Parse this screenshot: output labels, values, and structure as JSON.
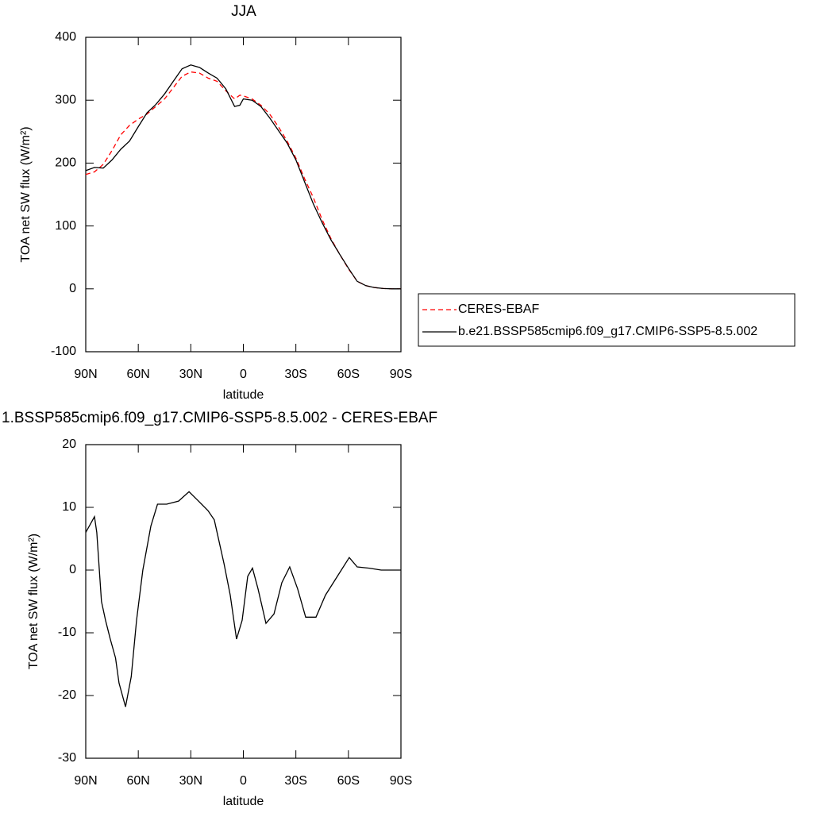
{
  "chart_data": [
    {
      "type": "line",
      "title": "JJA",
      "xlabel": "latitude",
      "ylabel": "TOA net SW flux (W/m²)",
      "x": [
        90,
        85,
        80,
        75,
        70,
        65,
        60,
        55,
        50,
        45,
        40,
        35,
        30,
        25,
        20,
        15,
        10,
        5,
        2,
        0,
        -5,
        -10,
        -15,
        -20,
        -25,
        -30,
        -35,
        -40,
        -45,
        -50,
        -55,
        -60,
        -65,
        -70,
        -75,
        -80,
        -85,
        -90
      ],
      "series": [
        {
          "name": "CERES-EBAF",
          "color": "#ff0000",
          "dash": true,
          "values": [
            182,
            186,
            198,
            220,
            245,
            260,
            270,
            278,
            290,
            302,
            320,
            338,
            345,
            343,
            335,
            330,
            315,
            302,
            308,
            307,
            302,
            292,
            278,
            258,
            235,
            208,
            175,
            145,
            110,
            80,
            55,
            32,
            12,
            5,
            2,
            0.5,
            0,
            0
          ]
        },
        {
          "name": "b.e21.BSSP585cmip6.f09_g17.CMIP6-SSP5-8.5.002",
          "color": "#000000",
          "dash": false,
          "values": [
            188,
            193,
            192,
            205,
            222,
            235,
            258,
            280,
            293,
            310,
            330,
            350,
            356,
            352,
            343,
            335,
            318,
            290,
            292,
            302,
            300,
            290,
            272,
            252,
            232,
            205,
            170,
            135,
            105,
            78,
            55,
            33,
            12,
            5,
            2,
            0.5,
            0,
            0
          ]
        }
      ],
      "xlim": [
        90,
        -90
      ],
      "xticks": [
        {
          "value": 90,
          "label": "90N"
        },
        {
          "value": 60,
          "label": "60N"
        },
        {
          "value": 30,
          "label": "30N"
        },
        0,
        {
          "value": -30,
          "label": "30S"
        },
        {
          "value": -60,
          "label": "60S"
        },
        {
          "value": -90,
          "label": "90S"
        }
      ],
      "ylim": [
        -100,
        400
      ],
      "yticks": [
        -100,
        0,
        100,
        200,
        300,
        400
      ],
      "legend": "right"
    },
    {
      "type": "line",
      "title": "1.BSSP585cmip6.f09_g17.CMIP6-SSP5-8.5.002 - CERES-EBAF",
      "xlabel": "latitude",
      "ylabel": "TOA net SW flux (W/m²)",
      "x": [
        90,
        88,
        85,
        83.7,
        81,
        78.7,
        76,
        73,
        71,
        67.3,
        64,
        61,
        57.4,
        52.8,
        49,
        43.8,
        37,
        31,
        25.6,
        20.2,
        16.6,
        11,
        7.5,
        3.9,
        0.7,
        -2.5,
        -5.2,
        -8.4,
        -12.9,
        -17.5,
        -22,
        -26.5,
        -31,
        -35.6,
        -41.5,
        -46.9,
        -53.7,
        -60.5,
        -65,
        -71.9,
        -78.7,
        -90
      ],
      "series": [
        {
          "name": null,
          "color": "#000000",
          "dash": false,
          "values": [
            6,
            7,
            8.5,
            6,
            -5,
            -8,
            -11,
            -14,
            -18,
            -21.8,
            -17,
            -8,
            0,
            7,
            10.5,
            10.5,
            11,
            12.5,
            11,
            9.5,
            8,
            1,
            -4,
            -11,
            -8,
            -1,
            0.3,
            -3,
            -8.5,
            -7,
            -2,
            0.5,
            -3,
            -7.5,
            -7.5,
            -4,
            -1,
            2,
            0.5,
            0.3,
            0,
            0
          ]
        }
      ],
      "xlim": [
        90,
        -90
      ],
      "xticks": [
        {
          "value": 90,
          "label": "90N"
        },
        {
          "value": 60,
          "label": "60N"
        },
        {
          "value": 30,
          "label": "30N"
        },
        0,
        {
          "value": -30,
          "label": "30S"
        },
        {
          "value": -60,
          "label": "60S"
        },
        {
          "value": -90,
          "label": "90S"
        }
      ],
      "ylim": [
        -30,
        20
      ],
      "yticks": [
        -30,
        -20,
        -10,
        0,
        10,
        20
      ]
    }
  ]
}
